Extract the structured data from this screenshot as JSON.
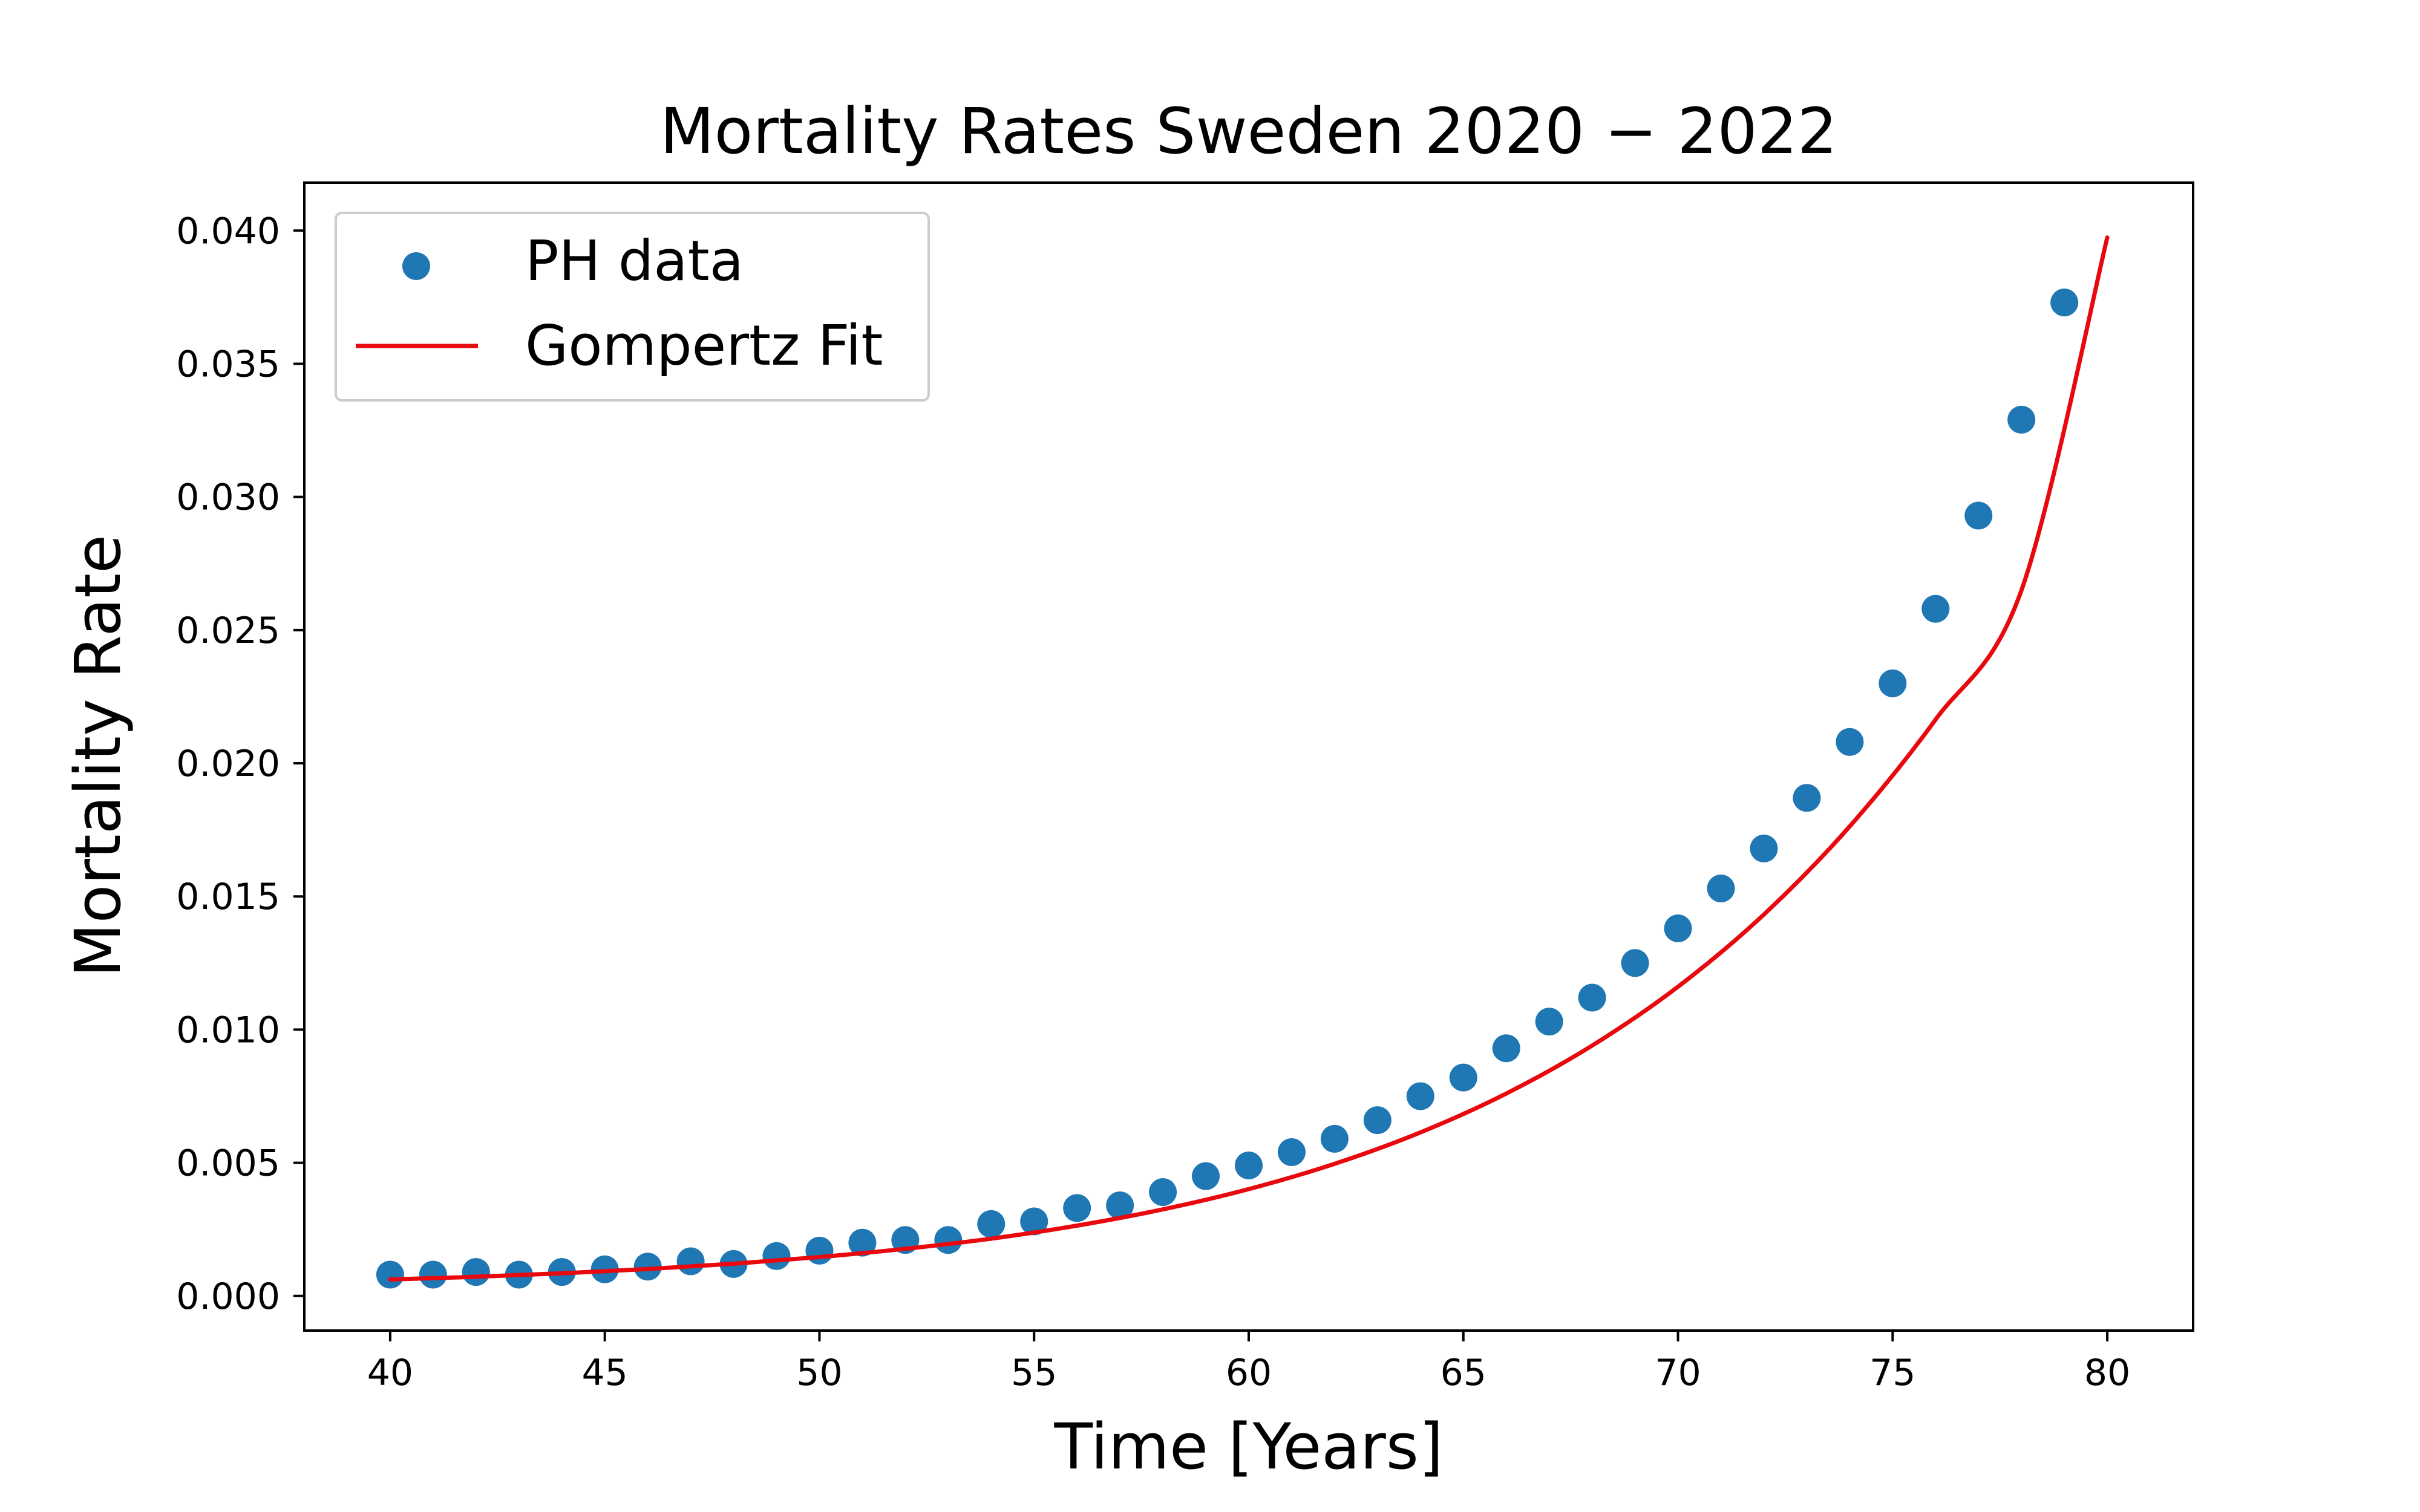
{
  "chart_data": {
    "type": "scatter",
    "title": "Mortality Rates Sweden 2020 − 2022",
    "xlabel": "Time [Years]",
    "ylabel": "Mortality Rate",
    "xlim": [
      38,
      82
    ],
    "ylim": [
      -0.0013,
      0.0418
    ],
    "xticks": [
      40,
      45,
      50,
      55,
      60,
      65,
      70,
      75,
      80
    ],
    "yticks": [
      0.0,
      0.005,
      0.01,
      0.015,
      0.02,
      0.025,
      0.03,
      0.035,
      0.04
    ],
    "ytick_labels": [
      "0.000",
      "0.005",
      "0.010",
      "0.015",
      "0.020",
      "0.025",
      "0.030",
      "0.035",
      "0.040"
    ],
    "grid": false,
    "legend_position": "upper-left",
    "series": [
      {
        "name": "PH data",
        "kind": "scatter",
        "color": "#1f77b4",
        "x": [
          40,
          41,
          42,
          43,
          44,
          45,
          46,
          47,
          48,
          49,
          50,
          51,
          52,
          53,
          54,
          55,
          56,
          57,
          58,
          59,
          60,
          61,
          62,
          63,
          64,
          65,
          66,
          67,
          68,
          69,
          70,
          71,
          72,
          73,
          74,
          75,
          76,
          77,
          78,
          79
        ],
        "y": [
          0.0008,
          0.0008,
          0.0009,
          0.0008,
          0.0009,
          0.001,
          0.0011,
          0.0013,
          0.0012,
          0.0015,
          0.0017,
          0.002,
          0.0021,
          0.0021,
          0.0027,
          0.0028,
          0.0033,
          0.0034,
          0.0039,
          0.0045,
          0.0049,
          0.0054,
          0.0059,
          0.0066,
          0.0075,
          0.0082,
          0.0093,
          0.0103,
          0.0112,
          0.0125,
          0.0138,
          0.0153,
          0.0168,
          0.0187,
          0.0208,
          0.023,
          0.0258,
          0.0293,
          0.0329,
          0.0373
        ]
      },
      {
        "name": "Gompertz Fit",
        "kind": "line",
        "color": "#e8090f",
        "x": [
          40,
          42,
          44,
          46,
          48,
          50,
          52,
          54,
          56,
          58,
          60,
          62,
          64,
          66,
          68,
          70,
          72,
          74,
          76,
          78,
          80
        ],
        "y": [
          0.00062,
          0.00072,
          0.00085,
          0.00101,
          0.00121,
          0.00146,
          0.00177,
          0.00215,
          0.00264,
          0.00325,
          0.00401,
          0.00496,
          0.00614,
          0.0076,
          0.0094,
          0.01161,
          0.01432,
          0.01763,
          0.02164,
          0.02649,
          0.03974
        ]
      }
    ]
  }
}
